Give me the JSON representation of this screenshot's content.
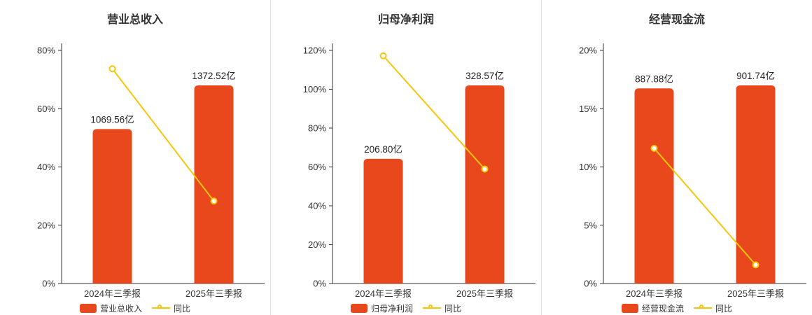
{
  "page": {
    "background": "#ffffff"
  },
  "colors": {
    "bar": "#e8481c",
    "line": "#f6c60a",
    "axis": "#333333",
    "text": "#333333",
    "value_label": "#222222",
    "divider": "#dddddd",
    "title": "#333333"
  },
  "chart_data": [
    {
      "type": "bar+line",
      "title": "营业总收入",
      "categories": [
        "2024年三季报",
        "2025年三季报"
      ],
      "bar_series": {
        "name": "营业总收入",
        "unit": "亿",
        "values": [
          1069.56,
          1372.52
        ],
        "labels": [
          "1069.56亿",
          "1372.52亿"
        ]
      },
      "line_series": {
        "name": "同比",
        "values_pct": [
          73.7,
          28.3
        ]
      },
      "y_axis": {
        "max": 80,
        "tick_values": [
          0,
          20,
          40,
          60,
          80
        ],
        "tick_labels": [
          "0%",
          "20%",
          "40%",
          "60%",
          "80%"
        ]
      },
      "legend_position": "bottom",
      "grid": false
    },
    {
      "type": "bar+line",
      "title": "归母净利润",
      "categories": [
        "2024年三季报",
        "2025年三季报"
      ],
      "bar_series": {
        "name": "归母净利润",
        "unit": "亿",
        "values": [
          206.8,
          328.57
        ],
        "labels": [
          "206.80亿",
          "328.57亿"
        ]
      },
      "line_series": {
        "name": "同比",
        "values_pct": [
          117.2,
          58.9
        ]
      },
      "y_axis": {
        "max": 120,
        "tick_values": [
          0,
          20,
          40,
          60,
          80,
          100,
          120
        ],
        "tick_labels": [
          "0%",
          "20%",
          "40%",
          "60%",
          "80%",
          "100%",
          "120%"
        ]
      },
      "legend_position": "bottom",
      "grid": false
    },
    {
      "type": "bar+line",
      "title": "经营现金流",
      "categories": [
        "2024年三季报",
        "2025年三季报"
      ],
      "bar_series": {
        "name": "经营现金流",
        "unit": "亿",
        "values": [
          887.88,
          901.74
        ],
        "labels": [
          "887.88亿",
          "901.74亿"
        ]
      },
      "line_series": {
        "name": "同比",
        "values_pct": [
          11.6,
          1.6
        ]
      },
      "y_axis": {
        "max": 20,
        "tick_values": [
          0,
          5,
          10,
          15,
          20
        ],
        "tick_labels": [
          "0%",
          "5%",
          "10%",
          "15%",
          "20%"
        ]
      },
      "legend_position": "bottom",
      "grid": false
    }
  ]
}
